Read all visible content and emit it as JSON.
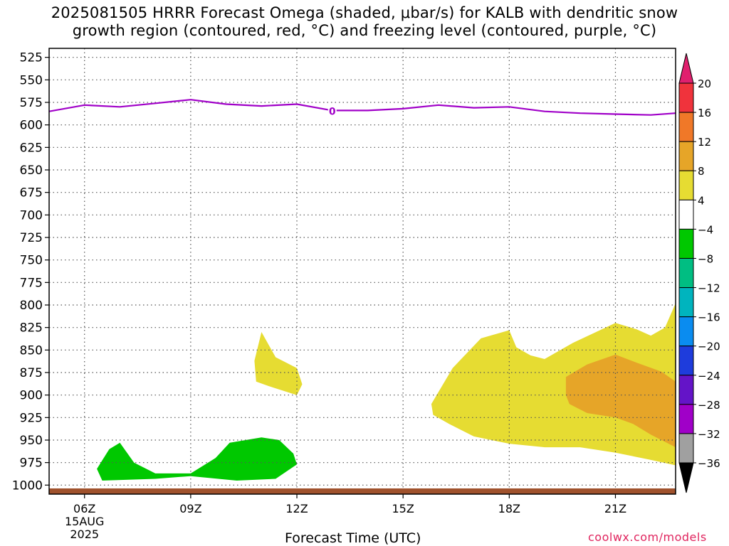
{
  "title": {
    "line1": "2025081505 HRRR Forecast Omega (shaded, μbar/s) for KALB with dendritic snow",
    "line2": "growth region (contoured, red, °C) and freezing level (contoured, purple, °C)"
  },
  "credit": "coolwx.com/models",
  "colors": {
    "freezing_level": "#a000c8",
    "ground": "#a0522d",
    "grid": "#555555"
  },
  "chart_data": {
    "type": "heatmap",
    "xlabel": "Forecast Time (UTC)",
    "ylabel": "",
    "x_range_hours_utc": [
      5,
      22.7
    ],
    "y_range_mb": [
      515,
      1010
    ],
    "y_axis": "pressure, inverted (increasing downward)",
    "grid": true,
    "x_ticks": [
      {
        "hour": 6,
        "label": "06Z",
        "sub": [
          "15AUG",
          "2025"
        ]
      },
      {
        "hour": 9,
        "label": "09Z"
      },
      {
        "hour": 12,
        "label": "12Z"
      },
      {
        "hour": 15,
        "label": "15Z"
      },
      {
        "hour": 18,
        "label": "18Z"
      },
      {
        "hour": 21,
        "label": "21Z"
      }
    ],
    "y_ticks": [
      525,
      550,
      575,
      600,
      625,
      650,
      675,
      700,
      725,
      750,
      775,
      800,
      825,
      850,
      875,
      900,
      925,
      950,
      975,
      1000
    ],
    "colorbar": {
      "labels": [
        "20",
        "16",
        "12",
        "8",
        "4",
        "-4",
        "-8",
        "-12",
        "-16",
        "-20",
        "-24",
        "-28",
        "-32",
        "-36"
      ],
      "bands": [
        {
          "from": 20,
          "to": 24,
          "color": "#e0206e"
        },
        {
          "from": 16,
          "to": 20,
          "color": "#f0333c"
        },
        {
          "from": 12,
          "to": 16,
          "color": "#f07828"
        },
        {
          "from": 8,
          "to": 12,
          "color": "#e6a528"
        },
        {
          "from": 4,
          "to": 8,
          "color": "#e6dc32"
        },
        {
          "from": -4,
          "to": 4,
          "color": "#ffffff"
        },
        {
          "from": -8,
          "to": -4,
          "color": "#00c800"
        },
        {
          "from": -12,
          "to": -8,
          "color": "#00be82"
        },
        {
          "from": -16,
          "to": -12,
          "color": "#00b4be"
        },
        {
          "from": -20,
          "to": -16,
          "color": "#0a8cf0"
        },
        {
          "from": -24,
          "to": -20,
          "color": "#1e3cdc"
        },
        {
          "from": -28,
          "to": -24,
          "color": "#6414c8"
        },
        {
          "from": -32,
          "to": -28,
          "color": "#a000c8"
        },
        {
          "from": -36,
          "to": -32,
          "color": "#a0a0a0"
        },
        {
          "from": -40,
          "to": -36,
          "color": "#000000"
        }
      ]
    },
    "freezing_level": {
      "label": "0",
      "label_at_hour": 13,
      "points": [
        [
          5,
          585
        ],
        [
          6,
          578
        ],
        [
          7,
          580
        ],
        [
          8,
          576
        ],
        [
          9,
          572
        ],
        [
          10,
          577
        ],
        [
          11,
          579
        ],
        [
          12,
          577
        ],
        [
          13,
          584
        ],
        [
          14,
          584
        ],
        [
          15,
          582
        ],
        [
          16,
          578
        ],
        [
          17,
          581
        ],
        [
          18,
          580
        ],
        [
          19,
          585
        ],
        [
          20,
          587
        ],
        [
          21,
          588
        ],
        [
          22,
          589
        ],
        [
          22.7,
          587
        ]
      ]
    },
    "omega_regions": [
      {
        "level_min": 4,
        "level_max": 8,
        "color": "#e6dc32",
        "points": [
          [
            11.0,
            830
          ],
          [
            11.4,
            858
          ],
          [
            12.0,
            870
          ],
          [
            12.15,
            888
          ],
          [
            12.0,
            900
          ],
          [
            11.2,
            890
          ],
          [
            10.85,
            885
          ],
          [
            10.8,
            862
          ]
        ]
      },
      {
        "level_min": -8,
        "level_max": -4,
        "color": "#00c800",
        "points": [
          [
            6.35,
            982
          ],
          [
            6.7,
            960
          ],
          [
            7.0,
            953
          ],
          [
            7.4,
            975
          ],
          [
            8.0,
            987
          ],
          [
            9.0,
            987
          ],
          [
            9.7,
            970
          ],
          [
            10.1,
            953
          ],
          [
            11.0,
            947
          ],
          [
            11.5,
            950
          ],
          [
            11.9,
            965
          ],
          [
            12.0,
            977
          ],
          [
            11.4,
            993
          ],
          [
            10.3,
            995
          ],
          [
            9.0,
            990
          ],
          [
            8.0,
            993
          ],
          [
            6.5,
            995
          ]
        ]
      },
      {
        "level_min": 4,
        "level_max": 8,
        "color": "#e6dc32",
        "points": [
          [
            15.8,
            910
          ],
          [
            16.4,
            870
          ],
          [
            17.2,
            837
          ],
          [
            18.0,
            828
          ],
          [
            18.2,
            847
          ],
          [
            18.6,
            856
          ],
          [
            19.0,
            860
          ],
          [
            19.8,
            842
          ],
          [
            21.0,
            820
          ],
          [
            21.6,
            827
          ],
          [
            22.0,
            834
          ],
          [
            22.4,
            825
          ],
          [
            22.7,
            798
          ],
          [
            22.7,
            978
          ],
          [
            22.0,
            972
          ],
          [
            21.0,
            964
          ],
          [
            20.0,
            958
          ],
          [
            19.0,
            958
          ],
          [
            18.0,
            954
          ],
          [
            17.0,
            946
          ],
          [
            16.3,
            932
          ],
          [
            15.85,
            922
          ]
        ]
      },
      {
        "level_min": 8,
        "level_max": 12,
        "color": "#e6a528",
        "points": [
          [
            19.6,
            880
          ],
          [
            20.2,
            866
          ],
          [
            21.0,
            855
          ],
          [
            21.6,
            864
          ],
          [
            22.3,
            874
          ],
          [
            22.7,
            885
          ],
          [
            22.7,
            958
          ],
          [
            22.0,
            944
          ],
          [
            21.5,
            932
          ],
          [
            21.0,
            925
          ],
          [
            20.2,
            920
          ],
          [
            19.7,
            910
          ],
          [
            19.6,
            900
          ]
        ]
      }
    ],
    "ground": {
      "from_hour": 5,
      "to_hour": 22.7,
      "color": "#a0522d"
    }
  }
}
